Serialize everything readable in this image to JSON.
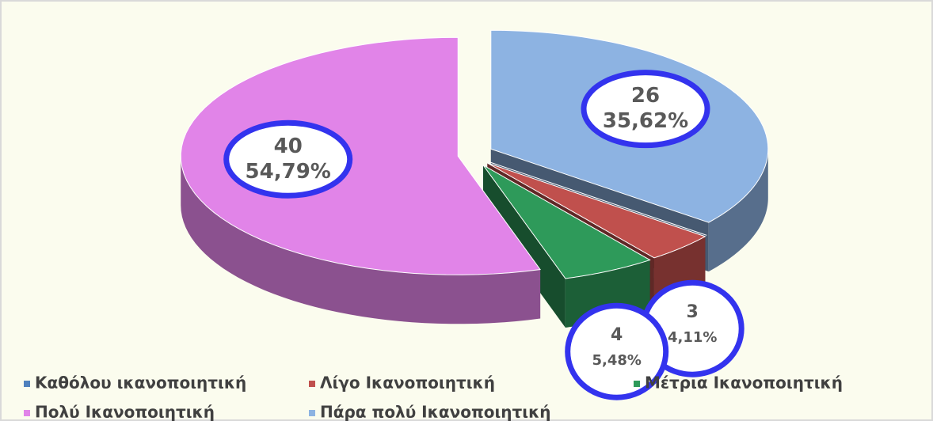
{
  "chart_data": {
    "type": "pie",
    "categories": [
      "Καθόλου ικανοποιητική",
      "Λίγο Ικανοποιητική",
      "Μέτρια Ικανοποιητική",
      "Πολύ Ικανοποιητική",
      "Πάρα πολύ Ικανοποιητική"
    ],
    "values": [
      0,
      3,
      4,
      40,
      26
    ],
    "percent_labels": [
      null,
      "4,11%",
      "5,48%",
      "54,79%",
      "35,62%"
    ],
    "colors": [
      "#4f81bd",
      "#c0504d",
      "#2e9a5a",
      "#e184e8",
      "#8db3e2"
    ],
    "legend": "bottom"
  }
}
